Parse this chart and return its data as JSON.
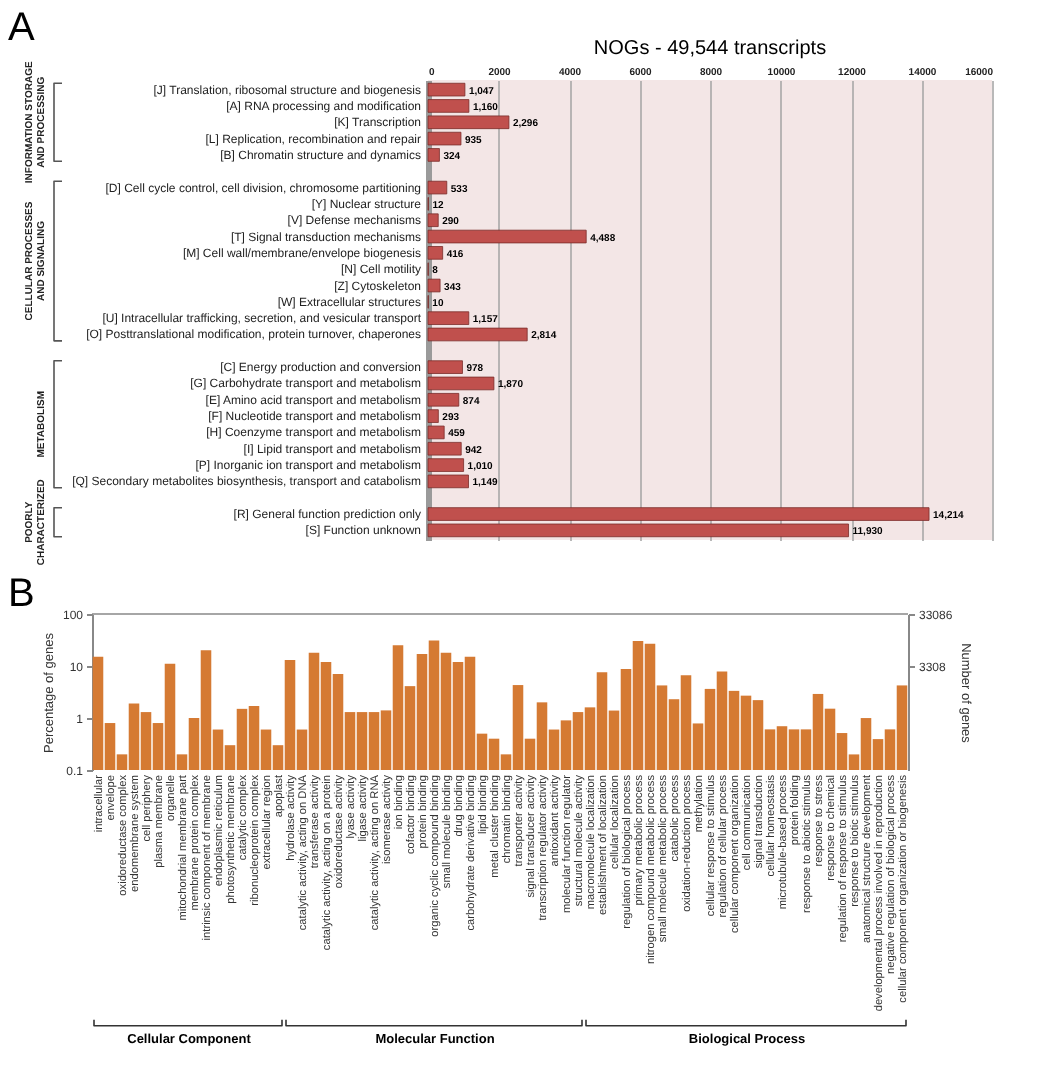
{
  "chart_data": [
    {
      "type": "bar",
      "orientation": "horizontal",
      "title": "NOGs - 49,544 transcripts",
      "categories": [
        "[J] Translation, ribosomal structure and biogenesis",
        "[A] RNA processing and modification",
        "[K] Transcription",
        "[L] Replication, recombination and repair",
        "[B] Chromatin structure and dynamics",
        null,
        "[D] Cell cycle control, cell division, chromosome partitioning",
        "[Y] Nuclear structure",
        "[V] Defense mechanisms",
        "[T] Signal transduction mechanisms",
        "[M] Cell wall/membrane/envelope biogenesis",
        "[N] Cell motility",
        "[Z] Cytoskeleton",
        "[W] Extracellular structures",
        "[U] Intracellular trafficking, secretion, and vesicular transport",
        "[O] Posttranslational modification, protein turnover, chaperones",
        null,
        "[C] Energy production and conversion",
        "[G] Carbohydrate transport and metabolism",
        "[E] Amino acid transport and metabolism",
        "[F] Nucleotide transport and metabolism",
        "[H] Coenzyme transport and metabolism",
        "[I] Lipid transport and metabolism",
        "[P] Inorganic ion transport and metabolism",
        "[Q] Secondary metabolites biosynthesis, transport and catabolism",
        null,
        "[R] General function prediction only",
        "[S] Function unknown"
      ],
      "values": [
        1047,
        1160,
        2296,
        935,
        324,
        null,
        533,
        12,
        290,
        4488,
        416,
        8,
        343,
        10,
        1157,
        2814,
        null,
        978,
        1870,
        874,
        293,
        459,
        942,
        1010,
        1149,
        null,
        14214,
        11930
      ],
      "value_labels": [
        "1,047",
        "1,160",
        "2,296",
        "935",
        "324",
        null,
        "533",
        "12",
        "290",
        "4,488",
        "416",
        "8",
        "343",
        "10",
        "1,157",
        "2,814",
        null,
        "978",
        "1,870",
        "874",
        "293",
        "459",
        "942",
        "1,010",
        "1,149",
        null,
        "14,214",
        "11,930"
      ],
      "color": "#c0504d",
      "xlim": [
        0,
        16000
      ],
      "xticks": [
        0,
        2000,
        4000,
        6000,
        8000,
        10000,
        12000,
        14000,
        16000
      ],
      "grid": "x",
      "annotations": [
        "A",
        "INFORMATION STORAGE AND PROCESSING",
        "CELLULAR PROCESSES AND SIGNALING",
        "METABOLISM",
        "POORLY CHARACTERIZED"
      ]
    },
    {
      "type": "bar",
      "categories": [
        "intracellular",
        "envelope",
        "oxidoreductase complex",
        "endomembrane system",
        "cell periphery",
        "plasma membrane",
        "organelle",
        "mitochondrial membrane part",
        "membrane protein complex",
        "intrinsic component of membrane",
        "endoplasmic reticulum",
        "photosynthetic membrane",
        "catalytic complex",
        "ribonucleoprotein complex",
        "extracellular region",
        "apoplast"
      ],
      "values": [
        15,
        0.8,
        0.2,
        1.9,
        1.3,
        0.8,
        11,
        0.2,
        1.0,
        20,
        0.6,
        0.3,
        1.5,
        1.7,
        0.6,
        0.3
      ],
      "color": "#d57a33",
      "xlabel": "Cellular Component",
      "ylabel": "Percentage of genes",
      "ylim": [
        0.1,
        100
      ],
      "yticks": [
        0.1,
        1,
        10,
        100
      ],
      "log": true,
      "annotations": [
        "B"
      ]
    },
    {
      "type": "bar",
      "categories": [
        "hydrolase activity",
        "catalytic activity, acting on DNA",
        "transferase activity",
        "catalytic activity, acting on a protein",
        "oxidoreductase activity",
        "lyase activity",
        "ligase activity",
        "catalytic activity, acting on RNA",
        "isomerase activity",
        "ion binding",
        "cofactor binding",
        "protein binding",
        "organic cyclic compound binding",
        "small molecule binding",
        "drug binding",
        "carbohydrate derivative binding",
        "lipid binding",
        "metal cluster binding",
        "chromatin binding",
        "transporter activity",
        "signal transducer activity",
        "transcription regulator activity",
        "antioxidant activity",
        "molecular function regulator",
        "structural molecule activity"
      ],
      "values": [
        13,
        0.6,
        18,
        12,
        7,
        1.3,
        1.3,
        1.3,
        1.4,
        25,
        4.1,
        17,
        31,
        18,
        12,
        15,
        0.5,
        0.4,
        0.2,
        4.3,
        0.4,
        2.0,
        0.6,
        0.9,
        1.3
      ],
      "color": "#d57a33",
      "xlabel": "Molecular Function",
      "ylim": [
        0.1,
        100
      ],
      "yticks": [
        0.1,
        1,
        10,
        100
      ],
      "log": true,
      "tick_labels": "x"
    },
    {
      "type": "bar",
      "categories": [
        "macromolecule localization",
        "establishment of localization",
        "cellular localization",
        "regulation of biological process",
        "primary metabolic process",
        "nitrogen compound metabolic process",
        "small molecule metabolic process",
        "catabolic process",
        "oxidation-reduction process",
        "methylation",
        "cellular response to stimulus",
        "regulation of cellular process",
        "cellular component organization",
        "cell communication",
        "signal transduction",
        "cellular homeostasis",
        "microtubule-based process",
        "protein folding",
        "response to abiotic stimulus",
        "response to stress",
        "response to chemical",
        "regulation of response to stimulus",
        "response to biotic stimulus",
        "anatomical structure development",
        "developmental process involved in reproduction",
        "negative regulation of biological process",
        "cellular component organization or biogenesis"
      ],
      "series": [
        {
          "color": "#d57a33",
          "axis": "y2",
          "values": [
            530,
            2500,
            460,
            2900,
            10000,
            8900,
            1400,
            760,
            2200,
            260,
            1200,
            2600,
            1100,
            890,
            730,
            200,
            230,
            200,
            200,
            960,
            500,
            170,
            66,
            330,
            130,
            200,
            1400
          ]
        }
      ],
      "xlabel": "Biological Process",
      "y2label": "Number of genes",
      "y2lim": [
        33.086,
        33086
      ],
      "y2ticks": [
        3308,
        33086
      ],
      "log": "y2"
    }
  ]
}
